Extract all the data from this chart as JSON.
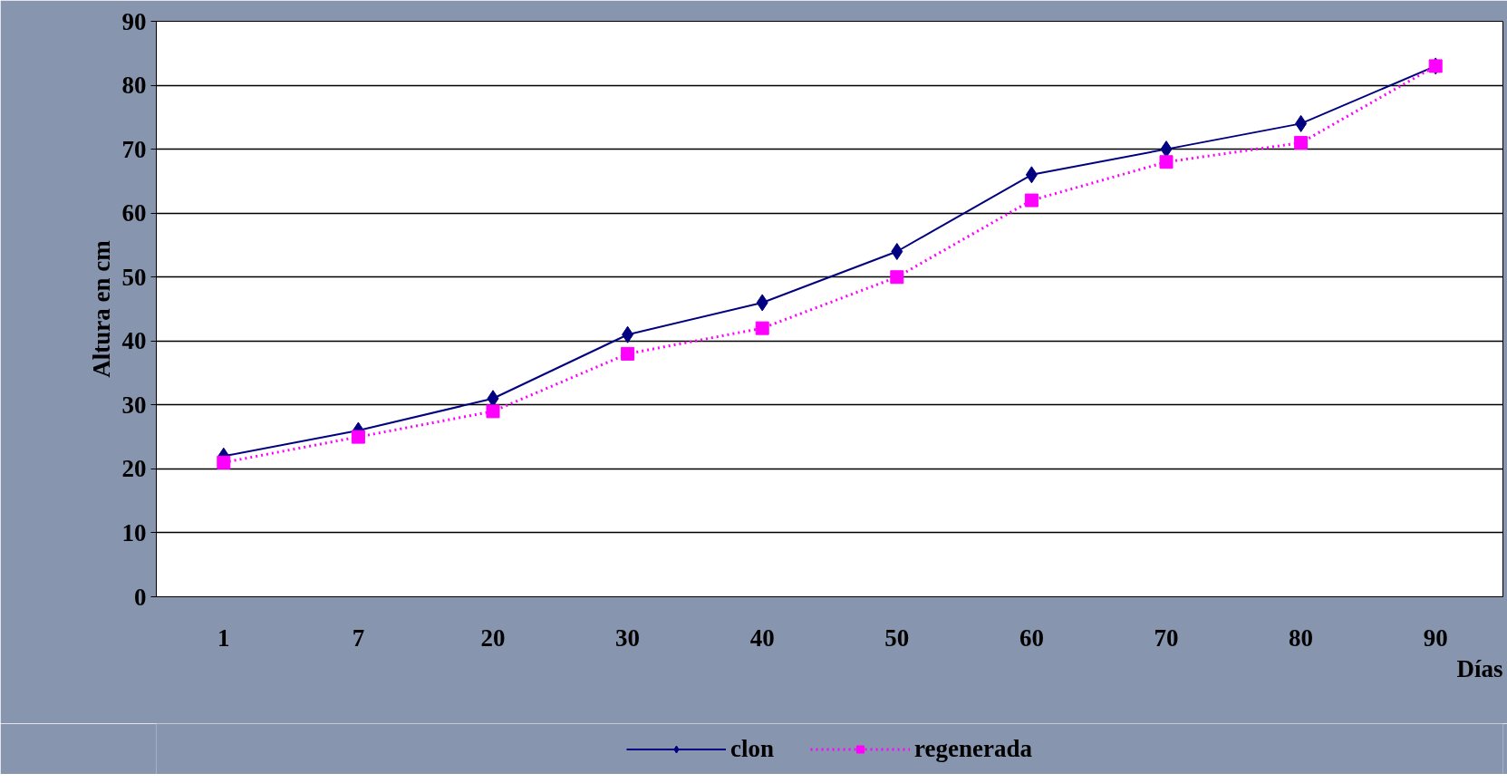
{
  "chart_data": {
    "type": "line",
    "xlabel": "Días",
    "ylabel": "Altura en cm",
    "categories": [
      "1",
      "7",
      "20",
      "30",
      "40",
      "50",
      "60",
      "70",
      "80",
      "90"
    ],
    "series": [
      {
        "name": "clon",
        "color": "#000080",
        "marker": "diamond",
        "line_style": "solid",
        "values": [
          22,
          26,
          31,
          41,
          46,
          54,
          66,
          70,
          74,
          83
        ]
      },
      {
        "name": "regenerada",
        "color": "#ff00ff",
        "marker": "square",
        "line_style": "dotted",
        "values": [
          21,
          25,
          29,
          38,
          42,
          50,
          62,
          68,
          71,
          83
        ]
      }
    ],
    "ylim": [
      0,
      90
    ],
    "yticks": [
      0,
      10,
      20,
      30,
      40,
      50,
      60,
      70,
      80,
      90
    ],
    "grid": "y",
    "legend": "bottom"
  }
}
